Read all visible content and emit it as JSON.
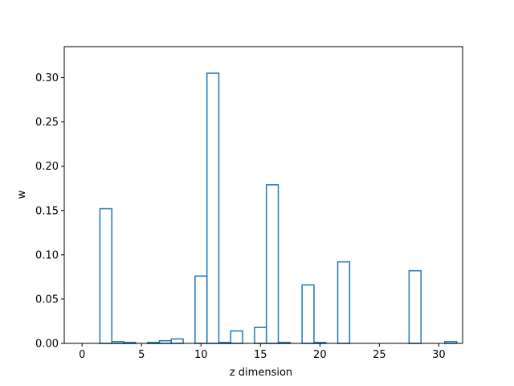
{
  "chart_data": {
    "type": "bar",
    "style": "step-outline histogram",
    "title": "",
    "xlabel": "z dimension",
    "ylabel": "w",
    "color": "#1f77b4",
    "x": [
      0,
      1,
      2,
      3,
      4,
      5,
      6,
      7,
      8,
      9,
      10,
      11,
      12,
      13,
      14,
      15,
      16,
      17,
      18,
      19,
      20,
      21,
      22,
      23,
      24,
      25,
      26,
      27,
      28,
      29,
      30,
      31
    ],
    "values": [
      0.0,
      0.0,
      0.152,
      0.002,
      0.001,
      0.0,
      0.001,
      0.003,
      0.005,
      0.0,
      0.076,
      0.305,
      0.001,
      0.014,
      0.0,
      0.018,
      0.179,
      0.001,
      0.0,
      0.066,
      0.001,
      0.0,
      0.092,
      0.0,
      0.0,
      0.0,
      0.0,
      0.0,
      0.082,
      0.0,
      0.0,
      0.002
    ],
    "xlim": [
      -1.5,
      32.0
    ],
    "ylim": [
      0,
      0.335
    ],
    "xticks": [
      0,
      5,
      10,
      15,
      20,
      25,
      30
    ],
    "xtick_labels": [
      "0",
      "5",
      "10",
      "15",
      "20",
      "25",
      "30"
    ],
    "yticks": [
      0.0,
      0.05,
      0.1,
      0.15,
      0.2,
      0.25,
      0.3
    ],
    "ytick_labels": [
      "0.00",
      "0.05",
      "0.10",
      "0.15",
      "0.20",
      "0.25",
      "0.30"
    ],
    "grid": false,
    "legend": "none"
  }
}
